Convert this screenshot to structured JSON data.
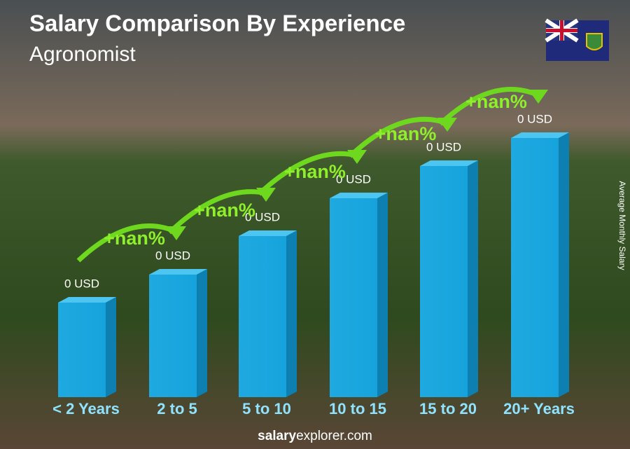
{
  "header": {
    "title": "Salary Comparison By Experience",
    "subtitle": "Agronomist"
  },
  "bars": [
    {
      "label": "< 2 Years",
      "value_label": "0 USD"
    },
    {
      "label": "2 to 5",
      "value_label": "0 USD"
    },
    {
      "label": "5 to 10",
      "value_label": "0 USD"
    },
    {
      "label": "10 to 15",
      "value_label": "0 USD"
    },
    {
      "label": "15 to 20",
      "value_label": "0 USD"
    },
    {
      "label": "20+ Years",
      "value_label": "0 USD"
    }
  ],
  "changes": [
    "+nan%",
    "+nan%",
    "+nan%",
    "+nan%",
    "+nan%"
  ],
  "axis_label": "Average Monthly Salary",
  "footer": {
    "brand": "salary",
    "rest": "explorer.com"
  }
}
